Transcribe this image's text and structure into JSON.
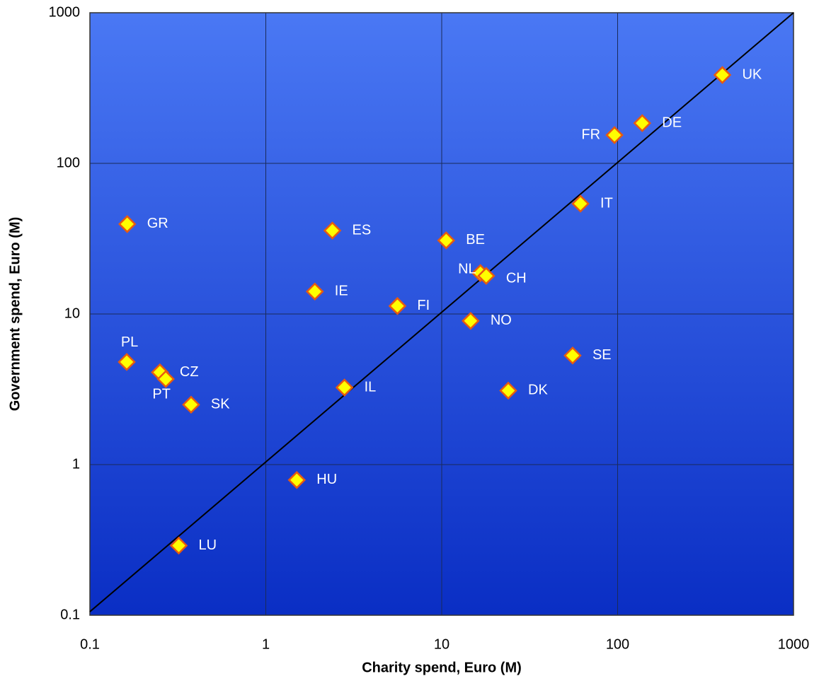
{
  "chart_data": {
    "type": "scatter",
    "xlabel": "Charity spend, Euro (M)",
    "ylabel": "Government spend, Euro (M)",
    "xscale": "log",
    "yscale": "log",
    "xlim": [
      0.1,
      1000
    ],
    "ylim": [
      0.1,
      1000
    ],
    "xticks": [
      0.1,
      1,
      10,
      100,
      1000
    ],
    "yticks": [
      0.1,
      1,
      10,
      100,
      1000
    ],
    "grid": true,
    "series": [
      {
        "color": "#ffff00",
        "edgecolor": "#e85a10",
        "labels": [
          "UK",
          "DE",
          "FR",
          "IT",
          "GR",
          "ES",
          "BE",
          "NL",
          "CH",
          "IE",
          "FI",
          "NO",
          "SE",
          "PL",
          "CZ",
          "PT",
          "IL",
          "DK",
          "SK",
          "HU",
          "LU"
        ],
        "x": [
          394,
          138,
          96,
          61.5,
          0.163,
          2.39,
          10.6,
          16.6,
          17.9,
          1.9,
          5.6,
          14.6,
          55.5,
          0.162,
          0.25,
          0.27,
          2.8,
          23.9,
          0.376,
          1.5,
          0.32
        ],
        "values": [
          386,
          185,
          154,
          54,
          39.5,
          35.8,
          30.8,
          18.7,
          17.9,
          14.1,
          11.3,
          9.0,
          5.3,
          4.8,
          4.1,
          3.7,
          3.25,
          3.1,
          2.5,
          0.79,
          0.29
        ]
      }
    ]
  }
}
